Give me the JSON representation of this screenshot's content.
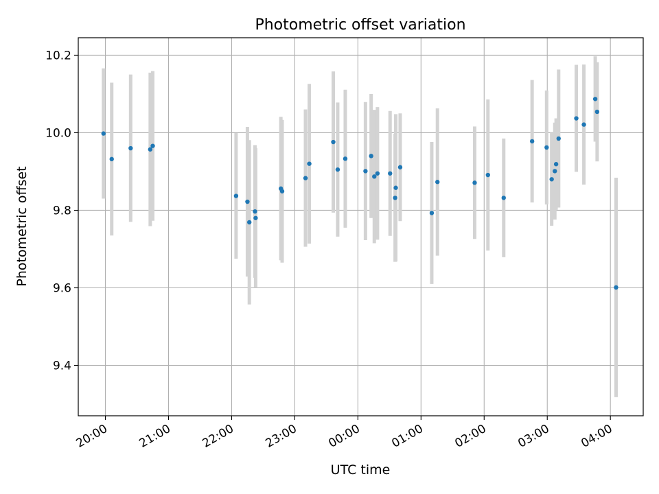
{
  "chart_data": {
    "type": "scatter",
    "title": "Photometric offset variation",
    "xlabel": "UTC time",
    "ylabel": "Photometric offset",
    "grid": true,
    "x_unit": "hours since 20:00 UTC",
    "xlim": [
      -0.43,
      8.52
    ],
    "ylim": [
      9.27,
      10.245
    ],
    "x_ticks": [
      {
        "value": 0,
        "label": "20:00"
      },
      {
        "value": 1,
        "label": "21:00"
      },
      {
        "value": 2,
        "label": "22:00"
      },
      {
        "value": 3,
        "label": "23:00"
      },
      {
        "value": 4,
        "label": "00:00"
      },
      {
        "value": 5,
        "label": "01:00"
      },
      {
        "value": 6,
        "label": "02:00"
      },
      {
        "value": 7,
        "label": "03:00"
      },
      {
        "value": 8,
        "label": "04:00"
      }
    ],
    "y_ticks": [
      {
        "value": 9.4,
        "label": "9.4"
      },
      {
        "value": 9.6,
        "label": "9.6"
      },
      {
        "value": 9.8,
        "label": "9.8"
      },
      {
        "value": 10.0,
        "label": "10.0"
      },
      {
        "value": 10.2,
        "label": "10.2"
      }
    ],
    "colors": {
      "point": "#1f77b4",
      "errorbar": "#d3d3d3",
      "grid": "#b0b0b0"
    },
    "points": [
      {
        "x": -0.03,
        "y": 9.998,
        "err": 0.168
      },
      {
        "x": 0.1,
        "y": 9.932,
        "err": 0.197
      },
      {
        "x": 0.4,
        "y": 9.96,
        "err": 0.19
      },
      {
        "x": 0.71,
        "y": 9.957,
        "err": 0.198
      },
      {
        "x": 0.75,
        "y": 9.966,
        "err": 0.193
      },
      {
        "x": 2.07,
        "y": 9.837,
        "err": 0.162
      },
      {
        "x": 2.25,
        "y": 9.822,
        "err": 0.193
      },
      {
        "x": 2.28,
        "y": 9.769,
        "err": 0.212
      },
      {
        "x": 2.37,
        "y": 9.797,
        "err": 0.171
      },
      {
        "x": 2.38,
        "y": 9.78,
        "err": 0.18
      },
      {
        "x": 2.78,
        "y": 9.856,
        "err": 0.185
      },
      {
        "x": 2.8,
        "y": 9.849,
        "err": 0.184
      },
      {
        "x": 3.17,
        "y": 9.883,
        "err": 0.177
      },
      {
        "x": 3.23,
        "y": 9.92,
        "err": 0.206
      },
      {
        "x": 3.61,
        "y": 9.976,
        "err": 0.182
      },
      {
        "x": 3.68,
        "y": 9.905,
        "err": 0.173
      },
      {
        "x": 3.8,
        "y": 9.933,
        "err": 0.178
      },
      {
        "x": 4.12,
        "y": 9.901,
        "err": 0.178
      },
      {
        "x": 4.21,
        "y": 9.94,
        "err": 0.16
      },
      {
        "x": 4.26,
        "y": 9.887,
        "err": 0.172
      },
      {
        "x": 4.31,
        "y": 9.895,
        "err": 0.171
      },
      {
        "x": 4.51,
        "y": 9.895,
        "err": 0.161
      },
      {
        "x": 4.59,
        "y": 9.832,
        "err": 0.165
      },
      {
        "x": 4.6,
        "y": 9.858,
        "err": 0.19
      },
      {
        "x": 4.67,
        "y": 9.911,
        "err": 0.139
      },
      {
        "x": 5.17,
        "y": 9.793,
        "err": 0.183
      },
      {
        "x": 5.26,
        "y": 9.873,
        "err": 0.19
      },
      {
        "x": 5.85,
        "y": 9.871,
        "err": 0.145
      },
      {
        "x": 6.06,
        "y": 9.891,
        "err": 0.195
      },
      {
        "x": 6.31,
        "y": 9.832,
        "err": 0.153
      },
      {
        "x": 6.76,
        "y": 9.978,
        "err": 0.158
      },
      {
        "x": 6.99,
        "y": 9.962,
        "err": 0.147
      },
      {
        "x": 7.07,
        "y": 9.88,
        "err": 0.12
      },
      {
        "x": 7.12,
        "y": 9.901,
        "err": 0.125
      },
      {
        "x": 7.14,
        "y": 9.919,
        "err": 0.118
      },
      {
        "x": 7.18,
        "y": 9.985,
        "err": 0.178
      },
      {
        "x": 7.46,
        "y": 10.037,
        "err": 0.138
      },
      {
        "x": 7.58,
        "y": 10.021,
        "err": 0.155
      },
      {
        "x": 7.76,
        "y": 10.087,
        "err": 0.11
      },
      {
        "x": 7.79,
        "y": 10.054,
        "err": 0.128
      },
      {
        "x": 8.09,
        "y": 9.601,
        "err": 0.283
      }
    ]
  }
}
